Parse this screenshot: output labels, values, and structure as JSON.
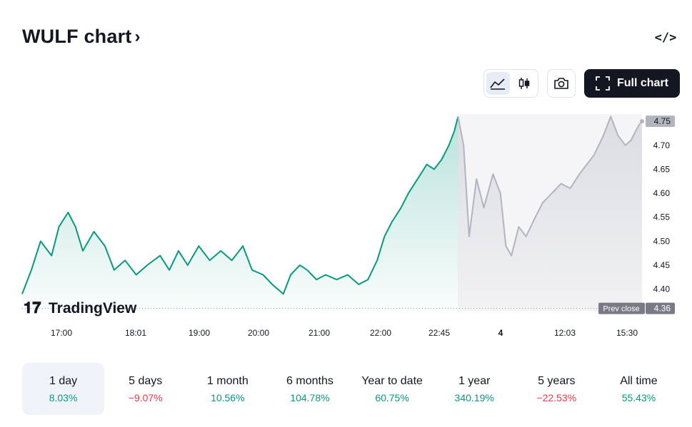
{
  "header": {
    "title": "WULF chart",
    "title_chevron": "›",
    "embed_label": "</>"
  },
  "toolbar": {
    "full_chart_label": "Full chart",
    "active_view": "area"
  },
  "icons": {
    "area": "area-chart-icon",
    "candles": "candlestick-icon",
    "camera": "camera-icon",
    "fullscreen": "fullscreen-corners-icon"
  },
  "colors": {
    "up_line": "#089981",
    "after_hours_line": "#b2b5be",
    "prev_close_tag": "#787b86",
    "last_price_tag": "#b2b5be",
    "negative": "#f23645",
    "positive": "#089981"
  },
  "watermark": "TradingView",
  "chart_data": {
    "type": "area",
    "ylim": [
      4.355,
      4.765
    ],
    "yticks": [
      "4.75",
      "4.70",
      "4.65",
      "4.60",
      "4.55",
      "4.50",
      "4.45",
      "4.40"
    ],
    "xticks": [
      "17:00",
      "18:01",
      "19:00",
      "20:00",
      "21:00",
      "22:00",
      "22:45",
      "4",
      "12:03",
      "15:30"
    ],
    "bold_xticks": [
      "4"
    ],
    "last_price": "4.75",
    "prev_close": {
      "label": "Prev close",
      "value": 4.36,
      "display": "4.36"
    },
    "series": [
      {
        "session": "regular",
        "points": [
          [
            0,
            4.39
          ],
          [
            10,
            4.44
          ],
          [
            20,
            4.5
          ],
          [
            32,
            4.47
          ],
          [
            40,
            4.53
          ],
          [
            50,
            4.56
          ],
          [
            58,
            4.53
          ],
          [
            66,
            4.48
          ],
          [
            78,
            4.52
          ],
          [
            90,
            4.49
          ],
          [
            100,
            4.44
          ],
          [
            112,
            4.46
          ],
          [
            124,
            4.43
          ],
          [
            136,
            4.45
          ],
          [
            150,
            4.47
          ],
          [
            160,
            4.44
          ],
          [
            170,
            4.48
          ],
          [
            180,
            4.45
          ],
          [
            192,
            4.49
          ],
          [
            204,
            4.46
          ],
          [
            216,
            4.48
          ],
          [
            228,
            4.46
          ],
          [
            240,
            4.49
          ],
          [
            250,
            4.44
          ],
          [
            262,
            4.43
          ],
          [
            272,
            4.41
          ],
          [
            284,
            4.39
          ],
          [
            292,
            4.43
          ],
          [
            302,
            4.45
          ],
          [
            310,
            4.44
          ],
          [
            320,
            4.42
          ],
          [
            330,
            4.43
          ],
          [
            342,
            4.42
          ],
          [
            354,
            4.43
          ],
          [
            366,
            4.41
          ],
          [
            376,
            4.42
          ],
          [
            386,
            4.46
          ],
          [
            394,
            4.51
          ],
          [
            402,
            4.54
          ],
          [
            412,
            4.57
          ],
          [
            420,
            4.6
          ],
          [
            430,
            4.63
          ],
          [
            440,
            4.66
          ],
          [
            448,
            4.65
          ],
          [
            456,
            4.67
          ],
          [
            464,
            4.7
          ],
          [
            470,
            4.73
          ],
          [
            474,
            4.76
          ]
        ]
      },
      {
        "session": "extended",
        "points": [
          [
            474,
            4.76
          ],
          [
            480,
            4.7
          ],
          [
            486,
            4.51
          ],
          [
            494,
            4.63
          ],
          [
            502,
            4.57
          ],
          [
            512,
            4.64
          ],
          [
            520,
            4.6
          ],
          [
            526,
            4.49
          ],
          [
            532,
            4.47
          ],
          [
            540,
            4.53
          ],
          [
            548,
            4.51
          ],
          [
            558,
            4.55
          ],
          [
            566,
            4.58
          ],
          [
            576,
            4.6
          ],
          [
            586,
            4.62
          ],
          [
            596,
            4.61
          ],
          [
            606,
            4.64
          ],
          [
            614,
            4.66
          ],
          [
            622,
            4.68
          ],
          [
            632,
            4.72
          ],
          [
            640,
            4.76
          ],
          [
            648,
            4.72
          ],
          [
            656,
            4.7
          ],
          [
            662,
            4.71
          ],
          [
            670,
            4.74
          ],
          [
            674,
            4.75
          ]
        ]
      }
    ]
  },
  "periods": [
    {
      "label": "1 day",
      "change": "8.03%",
      "sign": "positive",
      "active": true
    },
    {
      "label": "5 days",
      "change": "−9.07%",
      "sign": "negative",
      "active": false
    },
    {
      "label": "1 month",
      "change": "10.56%",
      "sign": "positive",
      "active": false
    },
    {
      "label": "6 months",
      "change": "104.78%",
      "sign": "positive",
      "active": false
    },
    {
      "label": "Year to date",
      "change": "60.75%",
      "sign": "positive",
      "active": false
    },
    {
      "label": "1 year",
      "change": "340.19%",
      "sign": "positive",
      "active": false
    },
    {
      "label": "5 years",
      "change": "−22.53%",
      "sign": "negative",
      "active": false
    },
    {
      "label": "All time",
      "change": "55.43%",
      "sign": "positive",
      "active": false
    }
  ]
}
